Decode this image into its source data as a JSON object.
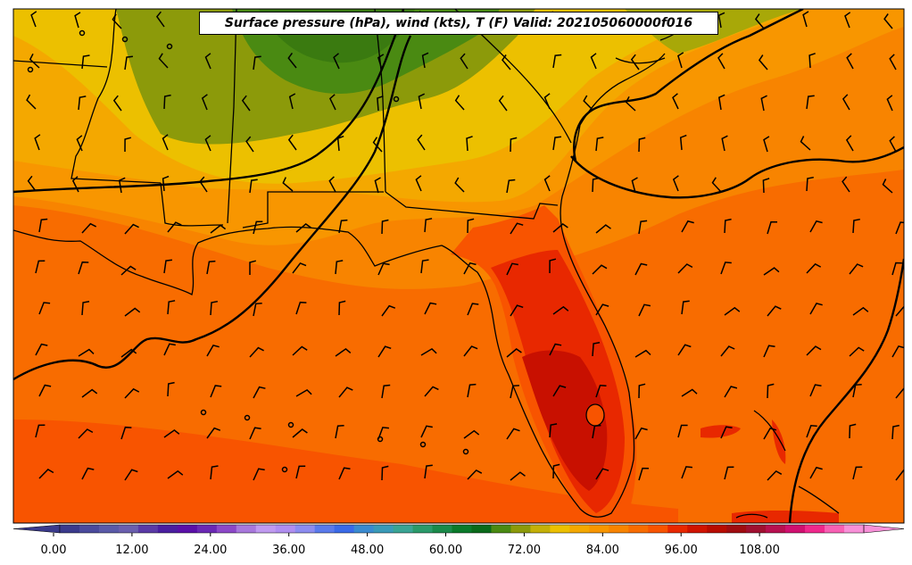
{
  "title": "Surface pressure (hPa), wind (kts), T (F) Valid: 202105060000f016",
  "colorbar": {
    "tick_labels": [
      "0.00",
      "12.00",
      "24.00",
      "36.00",
      "48.00",
      "60.00",
      "72.00",
      "84.00",
      "96.00",
      "108.00"
    ],
    "tick_values": [
      0,
      12,
      24,
      36,
      48,
      60,
      72,
      84,
      96,
      108
    ],
    "range": [
      -6,
      120
    ],
    "step": 3,
    "colors": [
      "#3a3a8c",
      "#4a4a9c",
      "#5a5aa8",
      "#6a5fae",
      "#5a3aa6",
      "#4a1ea0",
      "#5a10a8",
      "#6a28b4",
      "#8c48c8",
      "#a878dc",
      "#c09af0",
      "#b08ef0",
      "#8c8cf0",
      "#5a7aec",
      "#3a6ae8",
      "#3a8ad0",
      "#3a9ab8",
      "#3aa494",
      "#2a9a6a",
      "#1a8a4a",
      "#0a7a2a",
      "#0a6a1a",
      "#4a8a12",
      "#8c9a0a",
      "#c4b008",
      "#ecc000",
      "#f4a800",
      "#f89600",
      "#f88400",
      "#f86c00",
      "#f85400",
      "#e82800",
      "#d01400",
      "#b80c00",
      "#a00c10",
      "#a01030",
      "#b81050",
      "#d01070",
      "#f0288c",
      "#f860b4",
      "#f890d8"
    ]
  },
  "map": {
    "region": "Southeastern United States, Gulf of Mexico, Florida, Bahamas",
    "temperature_colors": {
      "t48": "#3a7a10",
      "t54": "#4a8a12",
      "t60": "#8c9a0a",
      "t66": "#a8a808",
      "t69": "#ecc000",
      "t72": "#f4a800",
      "t75": "#f89600",
      "t78": "#f88400",
      "t81": "#f86c00",
      "t84": "#f85400",
      "t87": "#e82800",
      "t90": "#c81000",
      "t93": "#b00c00"
    }
  }
}
